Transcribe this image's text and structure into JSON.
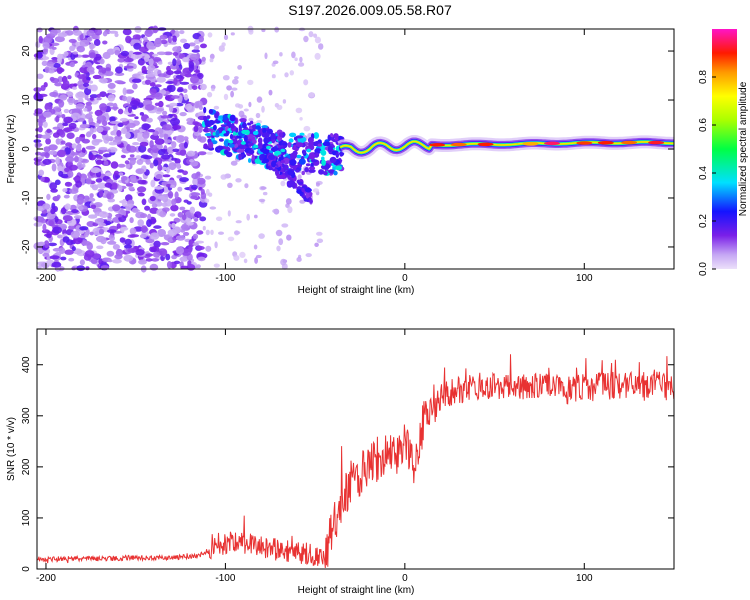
{
  "title": "S197.2026.009.05.58.R07",
  "colors": {
    "snr_line": "#e83232",
    "axis": "#000000",
    "background": "#ffffff"
  },
  "chart_data": [
    {
      "type": "heatmap",
      "name": "spectrogram",
      "xlabel": "Height of straight line (km)",
      "ylabel": "Frequency (Hz)",
      "xlim": [
        -205,
        150
      ],
      "ylim": [
        -24.5,
        24.5
      ],
      "xticks": [
        -200,
        -100,
        0,
        100
      ],
      "yticks": [
        -20,
        -10,
        0,
        10,
        20
      ],
      "colorbar": {
        "label": "Normalized spectral amplitude",
        "range": [
          0,
          1
        ],
        "ticks": [
          0.0,
          0.2,
          0.4,
          0.6,
          0.8
        ],
        "tick_labels": [
          "0.0",
          "0.2",
          "0.4",
          "0.6",
          "0.8"
        ]
      },
      "regions": [
        {
          "name": "noise",
          "x_range": [
            -205,
            -112
          ],
          "freq_range": [
            -24.5,
            24.5
          ],
          "amplitude": 0.15
        },
        {
          "name": "sparse-noise",
          "x_range": [
            -112,
            -45
          ],
          "freq_range": [
            -24.5,
            24.5
          ],
          "amplitude": 0.05
        },
        {
          "name": "onset-signal",
          "x_range": [
            -112,
            -35
          ],
          "freq_range": [
            -4,
            6
          ],
          "amplitude": 0.3
        },
        {
          "name": "downward-branch",
          "x_range": [
            -80,
            -52
          ],
          "freq_range": [
            -11,
            0
          ],
          "amplitude": 0.2
        },
        {
          "name": "narrow-band",
          "x_range": [
            -35,
            150
          ],
          "freq_range": [
            0,
            3
          ],
          "amplitude": 0.9
        }
      ],
      "ridge": {
        "x": [
          -112,
          -100,
          -85,
          -70,
          -55,
          -40,
          -30,
          -20,
          -10,
          0,
          10,
          30,
          60,
          90,
          120,
          150
        ],
        "y": [
          4,
          3,
          1.5,
          -0.5,
          -1,
          -1.2,
          0.5,
          -0.2,
          0.8,
          0.5,
          0.8,
          0.9,
          1.0,
          1.2,
          1.3,
          1.3
        ]
      }
    },
    {
      "type": "line",
      "name": "snr",
      "xlabel": "Height of straight line (km)",
      "ylabel": "SNR (10 * v/v)",
      "xlim": [
        -205,
        150
      ],
      "ylim": [
        0,
        470
      ],
      "xticks": [
        -200,
        -100,
        0,
        100
      ],
      "yticks": [
        0,
        100,
        200,
        300,
        400
      ],
      "series": [
        {
          "name": "SNR",
          "x": [
            -205,
            -190,
            -170,
            -150,
            -130,
            -115,
            -105,
            -95,
            -85,
            -75,
            -65,
            -55,
            -45,
            -38,
            -30,
            -20,
            -10,
            -5,
            0,
            5,
            10,
            20,
            30,
            40,
            50,
            70,
            90,
            100,
            120,
            140,
            150
          ],
          "y": [
            18,
            20,
            20,
            22,
            22,
            25,
            45,
            55,
            50,
            40,
            35,
            30,
            22,
            100,
            170,
            200,
            230,
            210,
            270,
            190,
            280,
            340,
            350,
            360,
            355,
            360,
            350,
            355,
            360,
            360,
            355
          ]
        }
      ]
    }
  ]
}
